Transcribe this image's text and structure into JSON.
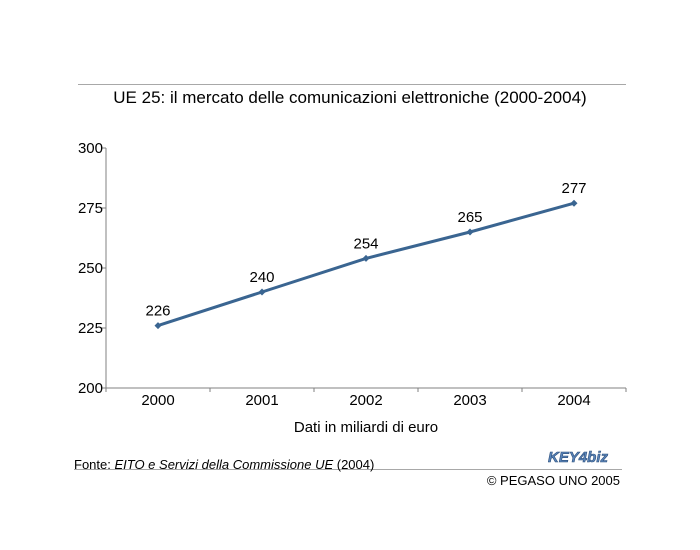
{
  "chart_data": {
    "type": "line",
    "title": "UE 25: il mercato delle comunicazioni elettroniche (2000-2004)",
    "xlabel": "Dati in miliardi di euro",
    "ylabel": "",
    "categories": [
      "2000",
      "2001",
      "2002",
      "2003",
      "2004"
    ],
    "series": [
      {
        "values": [
          226,
          240,
          254,
          265,
          277
        ],
        "color": "#3a6591"
      }
    ],
    "ylim": [
      200,
      300
    ],
    "yticks": [
      200,
      225,
      250,
      275,
      300
    ],
    "data_labels": true,
    "grid": false,
    "legend": "none"
  },
  "footer": {
    "source_prefix": "Fonte: ",
    "source_name": "EITO e Servizi della Commissione UE",
    "source_year": " (2004)",
    "copyright": "© PEGASO UNO 2005",
    "logo_text": "KEY4biz"
  },
  "colors": {
    "line": "#3a6591",
    "axis": "#808080",
    "rule": "#a8a8a8",
    "logo": "#5a84b8"
  }
}
